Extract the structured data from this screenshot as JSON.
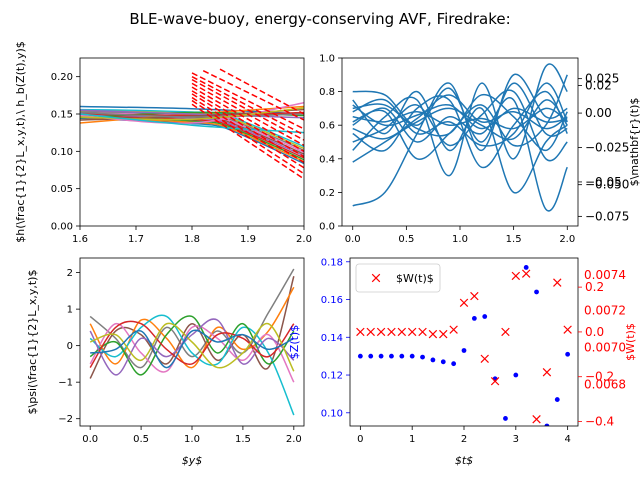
{
  "title": "BLE-wave-buoy, energy-conserving AVF, Firedrake:",
  "colors": {
    "tab": [
      "#1f77b4",
      "#ff7f0e",
      "#2ca02c",
      "#d62728",
      "#9467bd",
      "#8c564b",
      "#e377c2",
      "#7f7f7f",
      "#bcbd22",
      "#17becf"
    ],
    "blue": "#1f77b4",
    "pure_blue": "#0000ff",
    "red": "#ff0000"
  },
  "chart_data": [
    {
      "id": "top-left",
      "type": "line",
      "ylabel": "$h(\\frac{1}{2}L_x,y,t),\\ h_b(Z(t),y)$",
      "xlim": [
        1.6,
        2.0
      ],
      "ylim": [
        0.0,
        0.225
      ],
      "xticks": [
        "1.6",
        "1.7",
        "1.8",
        "1.9",
        "2.0"
      ],
      "yticks": [
        "0.00",
        "0.05",
        "0.10",
        "0.15",
        "0.20"
      ],
      "series": [
        {
          "x": [
            1.6,
            1.8,
            2.0
          ],
          "y": [
            0.16,
            0.157,
            0.15
          ],
          "color": "#1f77b4"
        },
        {
          "x": [
            1.6,
            1.8,
            2.0
          ],
          "y": [
            0.138,
            0.15,
            0.16
          ],
          "color": "#ff7f0e"
        },
        {
          "x": [
            1.6,
            1.8,
            2.0
          ],
          "y": [
            0.145,
            0.152,
            0.148
          ],
          "color": "#2ca02c"
        },
        {
          "x": [
            1.6,
            1.8,
            2.0
          ],
          "y": [
            0.15,
            0.148,
            0.152
          ],
          "color": "#d62728"
        },
        {
          "x": [
            1.6,
            1.8,
            2.0
          ],
          "y": [
            0.155,
            0.15,
            0.145
          ],
          "color": "#9467bd"
        },
        {
          "x": [
            1.6,
            1.8,
            2.0
          ],
          "y": [
            0.142,
            0.147,
            0.156
          ],
          "color": "#8c564b"
        },
        {
          "x": [
            1.6,
            1.8,
            2.0
          ],
          "y": [
            0.148,
            0.138,
            0.165
          ],
          "color": "#e377c2"
        },
        {
          "x": [
            1.6,
            1.8,
            2.0
          ],
          "y": [
            0.152,
            0.146,
            0.15
          ],
          "color": "#7f7f7f"
        },
        {
          "x": [
            1.6,
            1.8,
            2.0
          ],
          "y": [
            0.146,
            0.143,
            0.158
          ],
          "color": "#bcbd22"
        },
        {
          "x": [
            1.6,
            1.8,
            2.0
          ],
          "y": [
            0.15,
            0.135,
            0.125
          ],
          "color": "#17becf"
        }
      ],
      "dashed_red_lines": [
        {
          "x": [
            1.8,
            2.0
          ],
          "y": [
            0.205,
            0.13
          ]
        },
        {
          "x": [
            1.8,
            2.0
          ],
          "y": [
            0.2,
            0.122
          ]
        },
        {
          "x": [
            1.8,
            2.0
          ],
          "y": [
            0.196,
            0.115
          ]
        },
        {
          "x": [
            1.8,
            2.0
          ],
          "y": [
            0.191,
            0.108
          ]
        },
        {
          "x": [
            1.8,
            2.0
          ],
          "y": [
            0.186,
            0.1
          ]
        },
        {
          "x": [
            1.8,
            2.0
          ],
          "y": [
            0.181,
            0.093
          ]
        },
        {
          "x": [
            1.8,
            2.0
          ],
          "y": [
            0.177,
            0.085
          ]
        },
        {
          "x": [
            1.8,
            2.0
          ],
          "y": [
            0.172,
            0.078
          ]
        },
        {
          "x": [
            1.8,
            2.0
          ],
          "y": [
            0.168,
            0.07
          ]
        },
        {
          "x": [
            1.8,
            2.0
          ],
          "y": [
            0.163,
            0.063
          ]
        },
        {
          "x": [
            1.82,
            2.0
          ],
          "y": [
            0.208,
            0.142
          ]
        },
        {
          "x": [
            1.85,
            2.0
          ],
          "y": [
            0.21,
            0.15
          ]
        }
      ],
      "bundle": {
        "x": [
          1.6,
          1.7,
          1.8,
          1.85,
          1.9,
          1.95,
          2.0
        ],
        "y": [
          0.15,
          0.148,
          0.145,
          0.142,
          0.128,
          0.112,
          0.095
        ],
        "spread": 0.012,
        "count": 10
      }
    },
    {
      "id": "top-right",
      "type": "line",
      "xlim": [
        -0.1,
        2.1
      ],
      "ylim": [
        0.0,
        1.0
      ],
      "xticks": [
        "0.0",
        "0.5",
        "1.0",
        "1.5",
        "2.0"
      ],
      "yticks": [
        "0.0",
        "0.2",
        "0.4",
        "0.6",
        "0.8",
        "1.0"
      ],
      "right_ticks": [
        {
          "label": "0.025",
          "v": 0.025
        },
        {
          "label": "0.02",
          "v": 0.02
        },
        {
          "label": "0.00",
          "v": 0.0
        },
        {
          "label": "−0.025",
          "v": -0.025
        },
        {
          "label": "−0.05",
          "v": -0.05
        },
        {
          "label": "−0.050",
          "v": -0.052
        },
        {
          "label": "−0.075",
          "v": -0.075
        }
      ],
      "right_ylim": [
        -0.082,
        0.04
      ],
      "right_ylabel": "$\\mathbf{r}(t)$",
      "series_color": "#1f77b4",
      "series": [
        {
          "x": [
            0,
            0.3,
            0.6,
            0.9,
            1.2,
            1.5,
            1.8,
            2.0
          ],
          "y": [
            0.12,
            0.2,
            0.55,
            0.85,
            0.45,
            0.9,
            0.65,
            0.7
          ]
        },
        {
          "x": [
            0,
            0.3,
            0.6,
            0.9,
            1.2,
            1.5,
            1.8,
            2.0
          ],
          "y": [
            0.45,
            0.65,
            0.75,
            0.3,
            0.85,
            0.4,
            0.95,
            0.8
          ]
        },
        {
          "x": [
            0,
            0.3,
            0.6,
            0.9,
            1.2,
            1.5,
            1.8,
            2.0
          ],
          "y": [
            0.6,
            0.7,
            0.5,
            0.65,
            0.55,
            0.75,
            0.1,
            0.35
          ]
        },
        {
          "x": [
            0,
            0.3,
            0.6,
            0.9,
            1.2,
            1.5,
            1.8,
            2.0
          ],
          "y": [
            0.65,
            0.62,
            0.68,
            0.6,
            0.64,
            0.58,
            0.7,
            0.62
          ]
        },
        {
          "x": [
            0,
            0.3,
            0.6,
            0.9,
            1.2,
            1.5,
            1.8,
            2.0
          ],
          "y": [
            0.75,
            0.55,
            0.8,
            0.45,
            0.7,
            0.2,
            0.5,
            0.6
          ]
        },
        {
          "x": [
            0,
            0.3,
            0.6,
            0.9,
            1.2,
            1.5,
            1.8,
            2.0
          ],
          "y": [
            0.8,
            0.78,
            0.6,
            0.82,
            0.5,
            0.85,
            0.55,
            0.58
          ]
        },
        {
          "x": [
            0,
            0.3,
            0.6,
            0.9,
            1.2,
            1.5,
            1.8,
            2.0
          ],
          "y": [
            0.55,
            0.45,
            0.7,
            0.75,
            0.35,
            0.6,
            0.8,
            0.55
          ]
        },
        {
          "x": [
            0,
            0.3,
            0.6,
            0.9,
            1.2,
            1.5,
            1.8,
            2.0
          ],
          "y": [
            0.7,
            0.72,
            0.58,
            0.55,
            0.78,
            0.65,
            0.45,
            0.68
          ]
        },
        {
          "x": [
            0,
            0.3,
            0.6,
            0.9,
            1.2,
            1.5,
            1.8,
            2.0
          ],
          "y": [
            0.38,
            0.5,
            0.62,
            0.7,
            0.6,
            0.52,
            0.75,
            0.6
          ]
        },
        {
          "x": [
            0,
            0.3,
            0.6,
            0.9,
            1.2,
            1.5,
            1.8,
            2.0
          ],
          "y": [
            0.62,
            0.68,
            0.4,
            0.55,
            0.72,
            0.48,
            0.6,
            0.9
          ]
        },
        {
          "x": [
            0,
            0.3,
            0.6,
            0.9,
            1.2,
            1.5,
            1.8,
            2.0
          ],
          "y": [
            0.72,
            0.6,
            0.66,
            0.72,
            0.58,
            0.7,
            0.62,
            0.64
          ]
        },
        {
          "x": [
            0,
            0.3,
            0.6,
            0.9,
            1.2,
            1.5,
            1.8,
            2.0
          ],
          "y": [
            0.5,
            0.58,
            0.72,
            0.48,
            0.66,
            0.8,
            0.4,
            0.5
          ]
        },
        {
          "x": [
            0,
            0.3,
            0.6,
            0.9,
            1.2,
            1.5,
            1.8,
            2.0
          ],
          "y": [
            0.68,
            0.75,
            0.55,
            0.62,
            0.48,
            0.55,
            0.85,
            0.62
          ]
        },
        {
          "x": [
            0,
            0.3,
            0.6,
            0.9,
            1.2,
            1.5,
            1.8,
            2.0
          ],
          "y": [
            0.58,
            0.52,
            0.64,
            0.78,
            0.62,
            0.68,
            0.58,
            0.65
          ]
        }
      ]
    },
    {
      "id": "bottom-left",
      "type": "line",
      "xlabel": "$y$",
      "ylabel": "$\\psi(\\frac{1}{2}L_x,y,t)$",
      "xlim": [
        -0.1,
        2.1
      ],
      "ylim": [
        -2.2,
        2.4
      ],
      "xticks": [
        "0.0",
        "0.5",
        "1.0",
        "1.5",
        "2.0"
      ],
      "yticks": [
        "−2",
        "−1",
        "0",
        "1",
        "2"
      ],
      "series": [
        {
          "x": [
            0,
            0.25,
            0.5,
            0.75,
            1.0,
            1.25,
            1.5,
            1.75,
            2.0
          ],
          "y": [
            0.8,
            0.2,
            -0.6,
            0.5,
            -0.3,
            0.4,
            -0.2,
            0.9,
            2.1
          ],
          "color": "#7f7f7f"
        },
        {
          "x": [
            0,
            0.25,
            0.5,
            0.75,
            1.0,
            1.25,
            1.5,
            1.75,
            2.0
          ],
          "y": [
            -0.9,
            0.4,
            0.3,
            -0.5,
            0.6,
            -0.4,
            0.3,
            -0.6,
            1.9
          ],
          "color": "#8c564b"
        },
        {
          "x": [
            0,
            0.25,
            0.5,
            0.75,
            1.0,
            1.25,
            1.5,
            1.75,
            2.0
          ],
          "y": [
            0.6,
            -0.5,
            0.7,
            0.2,
            -0.6,
            0.5,
            -0.1,
            0.4,
            1.6
          ],
          "color": "#ff7f0e"
        },
        {
          "x": [
            0,
            0.25,
            0.5,
            0.75,
            1.0,
            1.25,
            1.5,
            1.75,
            2.0
          ],
          "y": [
            -0.5,
            0.6,
            -0.2,
            -0.7,
            0.5,
            0.2,
            -0.4,
            0.3,
            -1.0
          ],
          "color": "#e377c2"
        },
        {
          "x": [
            0,
            0.25,
            0.5,
            0.75,
            1.0,
            1.25,
            1.5,
            1.75,
            2.0
          ],
          "y": [
            0.2,
            -0.3,
            0.5,
            0.8,
            -0.2,
            -0.5,
            0.5,
            -0.2,
            -1.9
          ],
          "color": "#17becf"
        },
        {
          "x": [
            0,
            0.25,
            0.5,
            0.75,
            1.0,
            1.25,
            1.5,
            1.75,
            2.0
          ],
          "y": [
            -0.3,
            0.1,
            -0.8,
            0.3,
            0.8,
            -0.2,
            0.6,
            -0.5,
            0.4
          ],
          "color": "#2ca02c"
        },
        {
          "x": [
            0,
            0.25,
            0.5,
            0.75,
            1.0,
            1.25,
            1.5,
            1.75,
            2.0
          ],
          "y": [
            0.4,
            -0.8,
            0.2,
            -0.3,
            0.3,
            0.7,
            -0.5,
            0.2,
            -0.4
          ],
          "color": "#9467bd"
        },
        {
          "x": [
            0,
            0.25,
            0.5,
            0.75,
            1.0,
            1.25,
            1.5,
            1.75,
            2.0
          ],
          "y": [
            -0.6,
            0.5,
            0.6,
            -0.1,
            -0.5,
            0.3,
            0.2,
            -0.3,
            0.6
          ],
          "color": "#d62728"
        },
        {
          "x": [
            0,
            0.25,
            0.5,
            0.75,
            1.0,
            1.25,
            1.5,
            1.75,
            2.0
          ],
          "y": [
            0.1,
            0.3,
            -0.4,
            0.6,
            0.1,
            -0.6,
            -0.2,
            0.6,
            -0.7
          ],
          "color": "#bcbd22"
        },
        {
          "x": [
            0,
            0.25,
            0.5,
            0.75,
            1.0,
            1.25,
            1.5,
            1.75,
            2.0
          ],
          "y": [
            -0.2,
            -0.1,
            0.4,
            -0.6,
            0.4,
            0.1,
            0.3,
            -0.1,
            0.2
          ],
          "color": "#1f77b4"
        }
      ]
    },
    {
      "id": "bottom-right",
      "type": "scatter",
      "xlabel": "$t$",
      "left_ylabel": "$Z(t)$",
      "right_ylabel": "$W(t)$",
      "xlim": [
        -0.2,
        4.2
      ],
      "ylim": [
        0.093,
        0.182
      ],
      "xticks": [
        "0",
        "1",
        "2",
        "3",
        "4"
      ],
      "yticks": [
        "0.10",
        "0.12",
        "0.14",
        "0.16",
        "0.18"
      ],
      "right_ylim": [
        -0.42,
        0.33
      ],
      "right_ticks": [
        {
          "label": "0.2",
          "v": 0.2
        },
        {
          "label": "0.0",
          "v": 0.0
        },
        {
          "label": "−0.2",
          "v": -0.2
        },
        {
          "label": "−0.4",
          "v": -0.4
        }
      ],
      "right_ticks_outer": [
        {
          "label": "0.0074",
          "v": 0.255
        },
        {
          "label": "0.0072",
          "v": 0.095
        },
        {
          "label": "0.0070",
          "v": -0.07
        },
        {
          "label": "0.0068",
          "v": -0.235
        }
      ],
      "legend": {
        "label": "$W(t)$",
        "placement": "upper-left"
      },
      "Z": {
        "t": [
          0,
          0.2,
          0.4,
          0.6,
          0.8,
          1.0,
          1.2,
          1.4,
          1.6,
          1.8,
          2.0,
          2.2,
          2.4,
          2.6,
          2.8,
          3.0,
          3.2,
          3.4,
          3.6,
          3.8,
          4.0
        ],
        "v": [
          0.13,
          0.13,
          0.13,
          0.13,
          0.13,
          0.13,
          0.1295,
          0.128,
          0.127,
          0.126,
          0.133,
          0.15,
          0.151,
          0.118,
          0.097,
          0.12,
          0.177,
          0.164,
          0.093,
          0.107,
          0.131
        ]
      },
      "W": {
        "t": [
          0,
          0.2,
          0.4,
          0.6,
          0.8,
          1.0,
          1.2,
          1.4,
          1.6,
          1.8,
          2.0,
          2.2,
          2.4,
          2.6,
          2.8,
          3.0,
          3.2,
          3.4,
          3.6,
          3.8,
          4.0
        ],
        "v": [
          0.0,
          0.0,
          0.0,
          0.0,
          0.0,
          0.0,
          0.0,
          -0.01,
          -0.01,
          0.01,
          0.13,
          0.16,
          -0.12,
          -0.22,
          0.0,
          0.25,
          0.26,
          -0.39,
          -0.18,
          0.22,
          0.01
        ]
      }
    }
  ]
}
